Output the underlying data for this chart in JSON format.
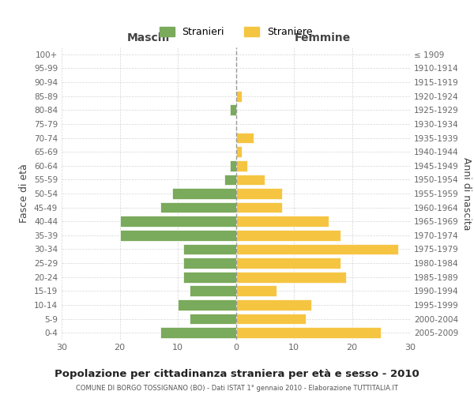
{
  "age_groups": [
    "0-4",
    "5-9",
    "10-14",
    "15-19",
    "20-24",
    "25-29",
    "30-34",
    "35-39",
    "40-44",
    "45-49",
    "50-54",
    "55-59",
    "60-64",
    "65-69",
    "70-74",
    "75-79",
    "80-84",
    "85-89",
    "90-94",
    "95-99",
    "100+"
  ],
  "birth_years": [
    "2005-2009",
    "2000-2004",
    "1995-1999",
    "1990-1994",
    "1985-1989",
    "1980-1984",
    "1975-1979",
    "1970-1974",
    "1965-1969",
    "1960-1964",
    "1955-1959",
    "1950-1954",
    "1945-1949",
    "1940-1944",
    "1935-1939",
    "1930-1934",
    "1925-1929",
    "1920-1924",
    "1915-1919",
    "1910-1914",
    "≤ 1909"
  ],
  "maschi": [
    13,
    8,
    10,
    8,
    9,
    9,
    9,
    20,
    20,
    13,
    11,
    2,
    1,
    0,
    0,
    0,
    1,
    0,
    0,
    0,
    0
  ],
  "femmine": [
    25,
    12,
    13,
    7,
    19,
    18,
    28,
    18,
    16,
    8,
    8,
    5,
    2,
    1,
    3,
    0,
    0,
    1,
    0,
    0,
    0
  ],
  "color_maschi": "#7aaa5b",
  "color_femmine": "#f5c542",
  "title": "Popolazione per cittadinanza straniera per età e sesso - 2010",
  "subtitle": "COMUNE DI BORGO TOSSIGNANO (BO) - Dati ISTAT 1° gennaio 2010 - Elaborazione TUTTITALIA.IT",
  "xlabel_left": "Maschi",
  "xlabel_right": "Femmine",
  "ylabel_left": "Fasce di età",
  "ylabel_right": "Anni di nascita",
  "legend_maschi": "Stranieri",
  "legend_femmine": "Straniere",
  "xlim": 30,
  "background_color": "#ffffff",
  "grid_color": "#cccccc"
}
